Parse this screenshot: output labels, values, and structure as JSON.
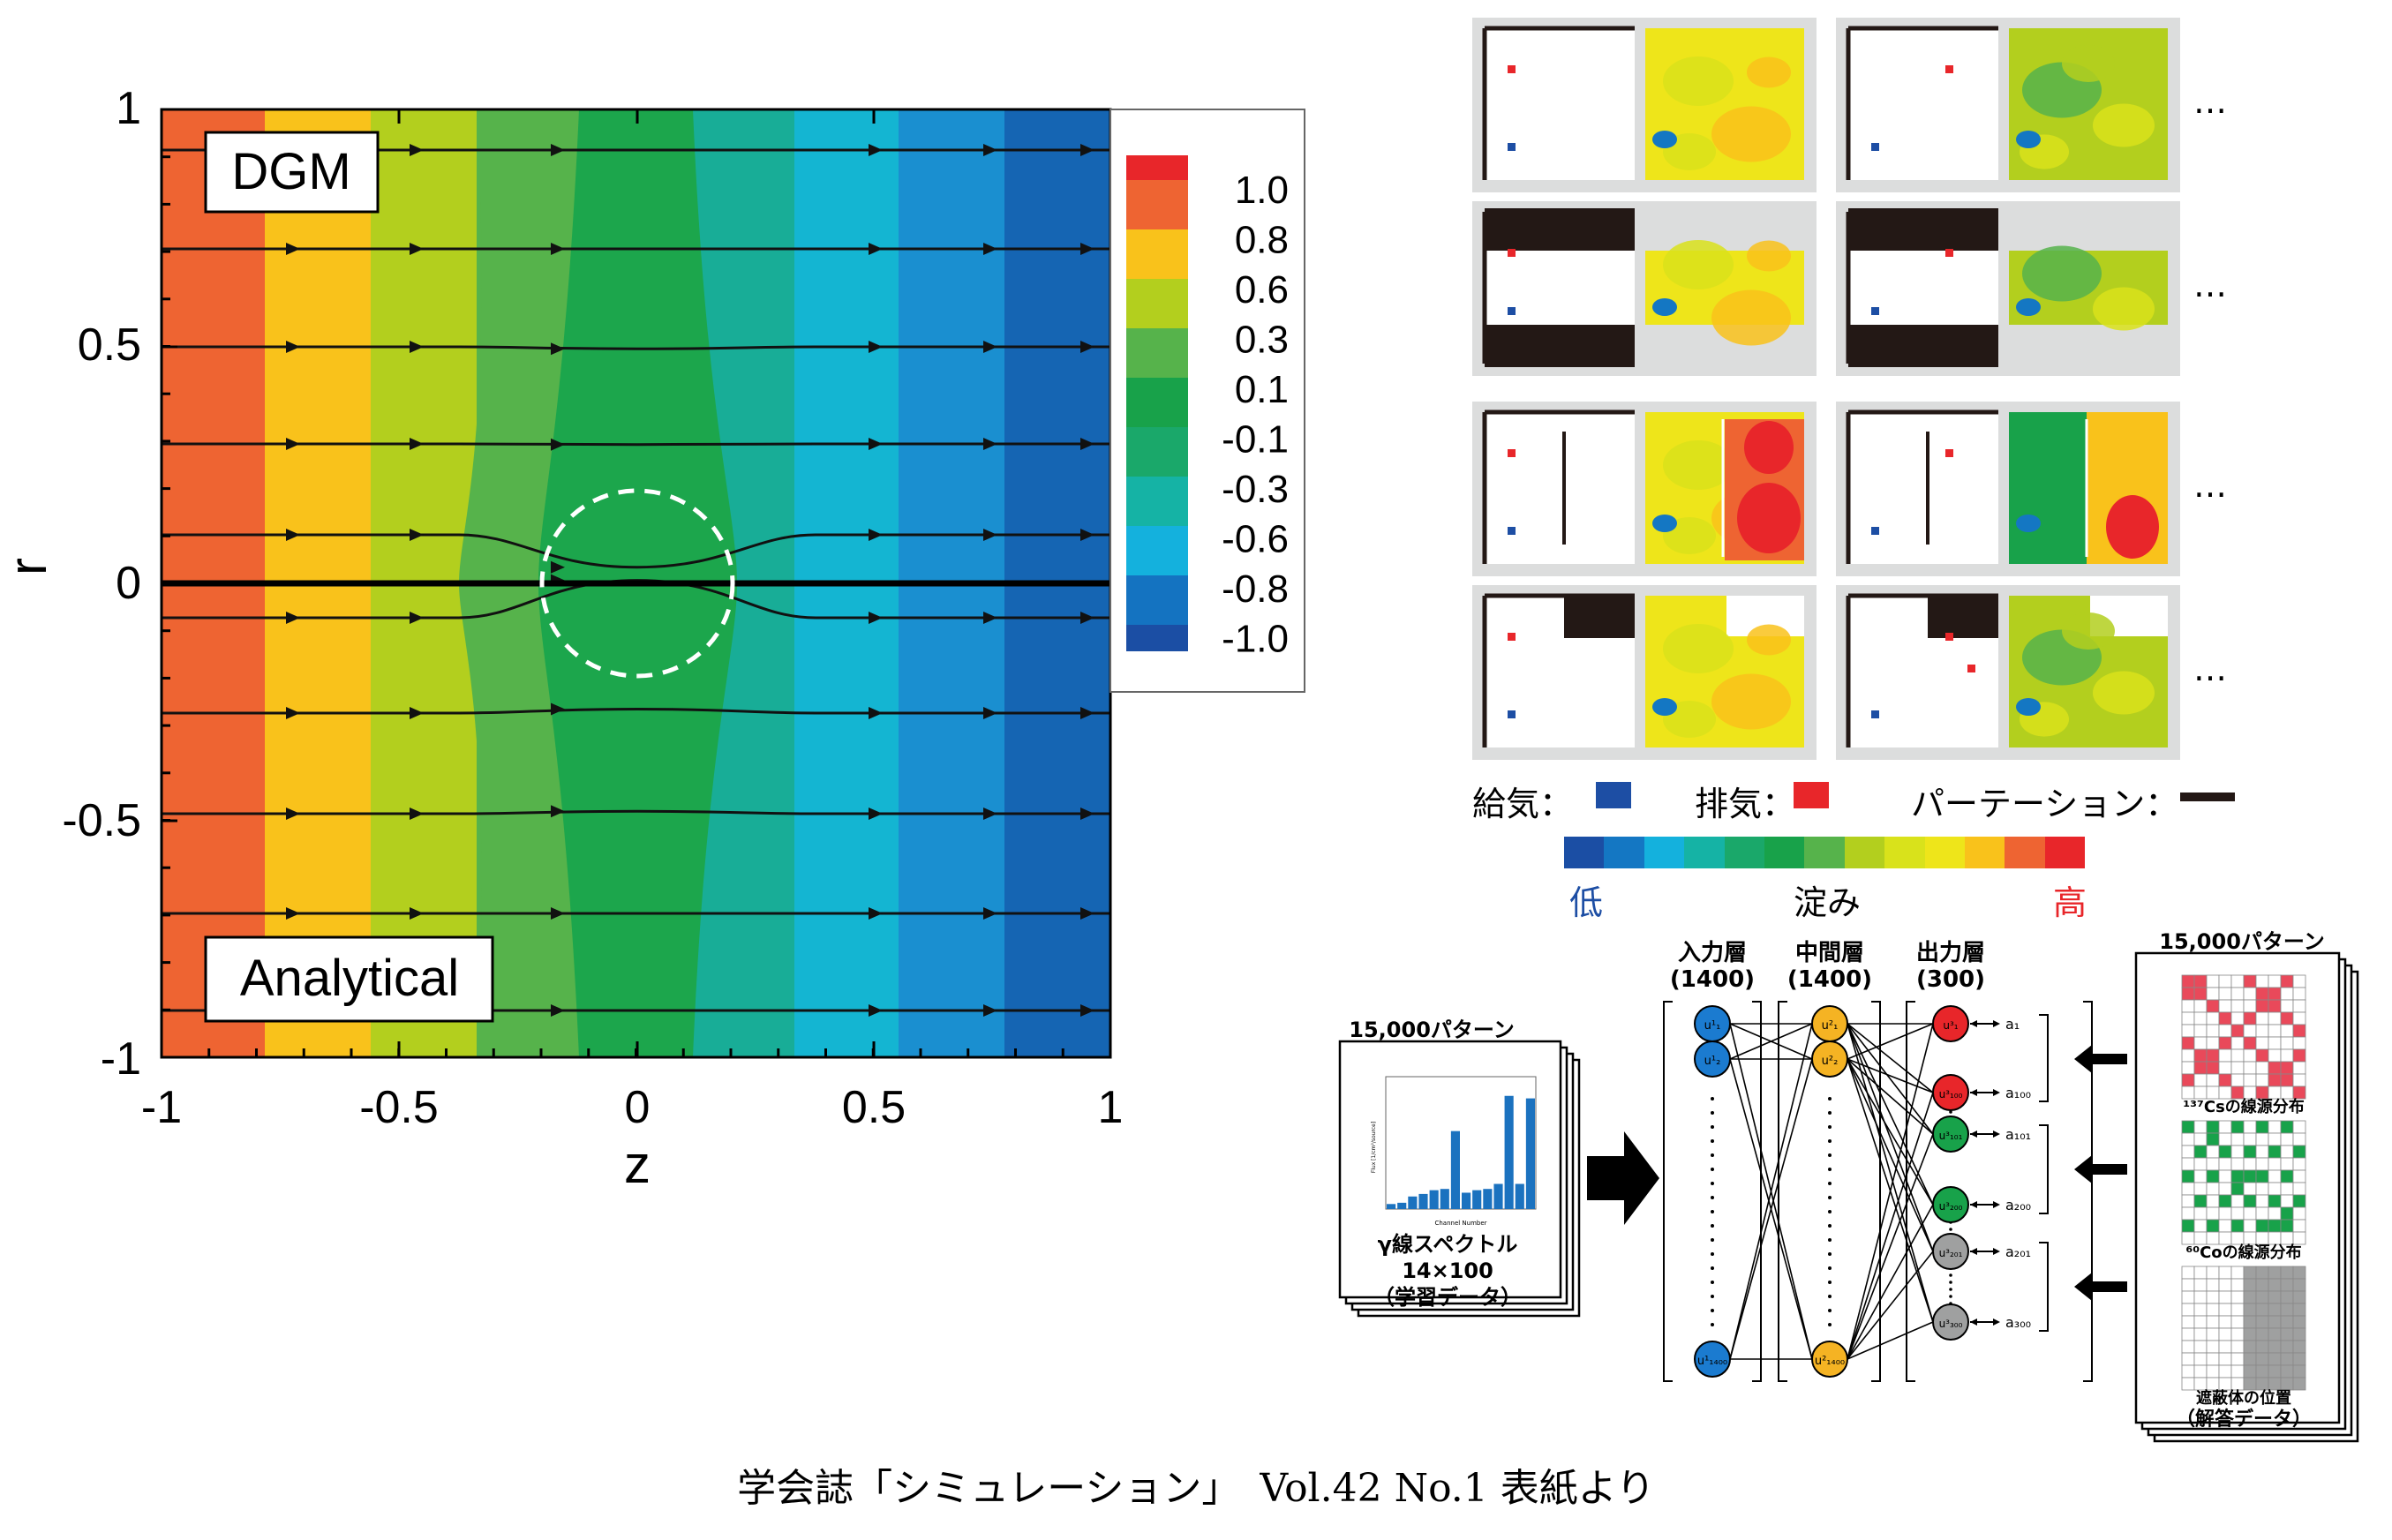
{
  "left_panel": {
    "labels": {
      "top": "DGM",
      "bottom": "Analytical"
    },
    "axes": {
      "xlabel": "z",
      "ylabel": "r",
      "xticks": [
        "-1",
        "-0.5",
        "0",
        "0.5",
        "1"
      ],
      "yticks": [
        "1",
        "0.5",
        "0",
        "-0.5",
        "-1"
      ]
    },
    "colorbar": {
      "levels": [
        "1.0",
        "0.8",
        "0.6",
        "0.3",
        "0.1",
        "-0.1",
        "-0.3",
        "-0.6",
        "-0.8",
        "-1.0"
      ],
      "colors": [
        "#e8262a",
        "#ee6432",
        "#f9c21b",
        "#b3cf1e",
        "#56b34b",
        "#18a24a",
        "#1aa86a",
        "#15b3a5",
        "#14b1dd",
        "#1473c1",
        "#1b4ea4"
      ]
    },
    "bands": [
      {
        "color": "#ee6432"
      },
      {
        "color": "#f9c21b"
      },
      {
        "color": "#b3cf1e"
      },
      {
        "color": "#56b34b"
      },
      {
        "color": "#1ca64c"
      },
      {
        "color": "#19a152"
      },
      {
        "color": "#18ad97"
      },
      {
        "color": "#14b5d2"
      },
      {
        "color": "#1a8fd0"
      },
      {
        "color": "#1565b3"
      }
    ]
  },
  "right_top": {
    "ellipsis": "…",
    "legend": {
      "supply": "給気：",
      "exhaust": "排気：",
      "partition": "パーテーション：",
      "supply_color": "#1d4ea4",
      "exhaust_color": "#e8262a",
      "partition_color": "#231815"
    },
    "scale": {
      "low": "低",
      "mid": "淀み",
      "high": "高",
      "low_color": "#1d4ea4",
      "high_color": "#e8262a",
      "colors": [
        "#1b4ea4",
        "#1477c3",
        "#14b1dd",
        "#15b3a5",
        "#1aa86a",
        "#18a24a",
        "#56b34b",
        "#b3cf1e",
        "#d9e21b",
        "#eee51a",
        "#f9c21b",
        "#ee6432",
        "#e8262a"
      ]
    }
  },
  "nn": {
    "left_stack": {
      "header": "15,000パターン",
      "line1": "γ線スペクトル",
      "line2": "14×100",
      "line3": "（学習データ）",
      "bars": [
        0.04,
        0.05,
        0.1,
        0.12,
        0.15,
        0.16,
        0.62,
        0.13,
        0.15,
        0.16,
        0.2,
        0.9,
        0.2,
        0.88
      ],
      "ylabel": "Flux [1/cm²/source]",
      "xlabel": "Channel Number"
    },
    "layers": {
      "input": {
        "title": "入力層",
        "count": "(1400)"
      },
      "middle": {
        "title": "中間層",
        "count": "(1400)"
      },
      "output": {
        "title": "出力層",
        "count": "(300)"
      }
    },
    "node_labels": {
      "input": [
        "u¹₁",
        "u¹₂",
        "u¹₁₄₀₀"
      ],
      "middle": [
        "u²₁",
        "u²₂",
        "u²₁₄₀₀"
      ],
      "output": [
        "u³₁",
        "u³₁₀₀",
        "u³₁₀₁",
        "u³₂₀₀",
        "u³₂₀₁",
        "u³₃₀₀"
      ]
    },
    "outputs": [
      "a₁",
      "a₁₀₀",
      "a₁₀₁",
      "a₂₀₀",
      "a₂₀₁",
      "a₃₀₀"
    ],
    "right_stack": {
      "header": "15,000パターン",
      "cs_label": "¹³⁷Csの線源分布",
      "co_label": "⁶⁰Coの線源分布",
      "shield_label": "遮蔽体の位置",
      "answer_label": "（解答データ）"
    }
  },
  "caption": "学会誌「シミュレーション」　Vol.42 No.1 表紙より"
}
